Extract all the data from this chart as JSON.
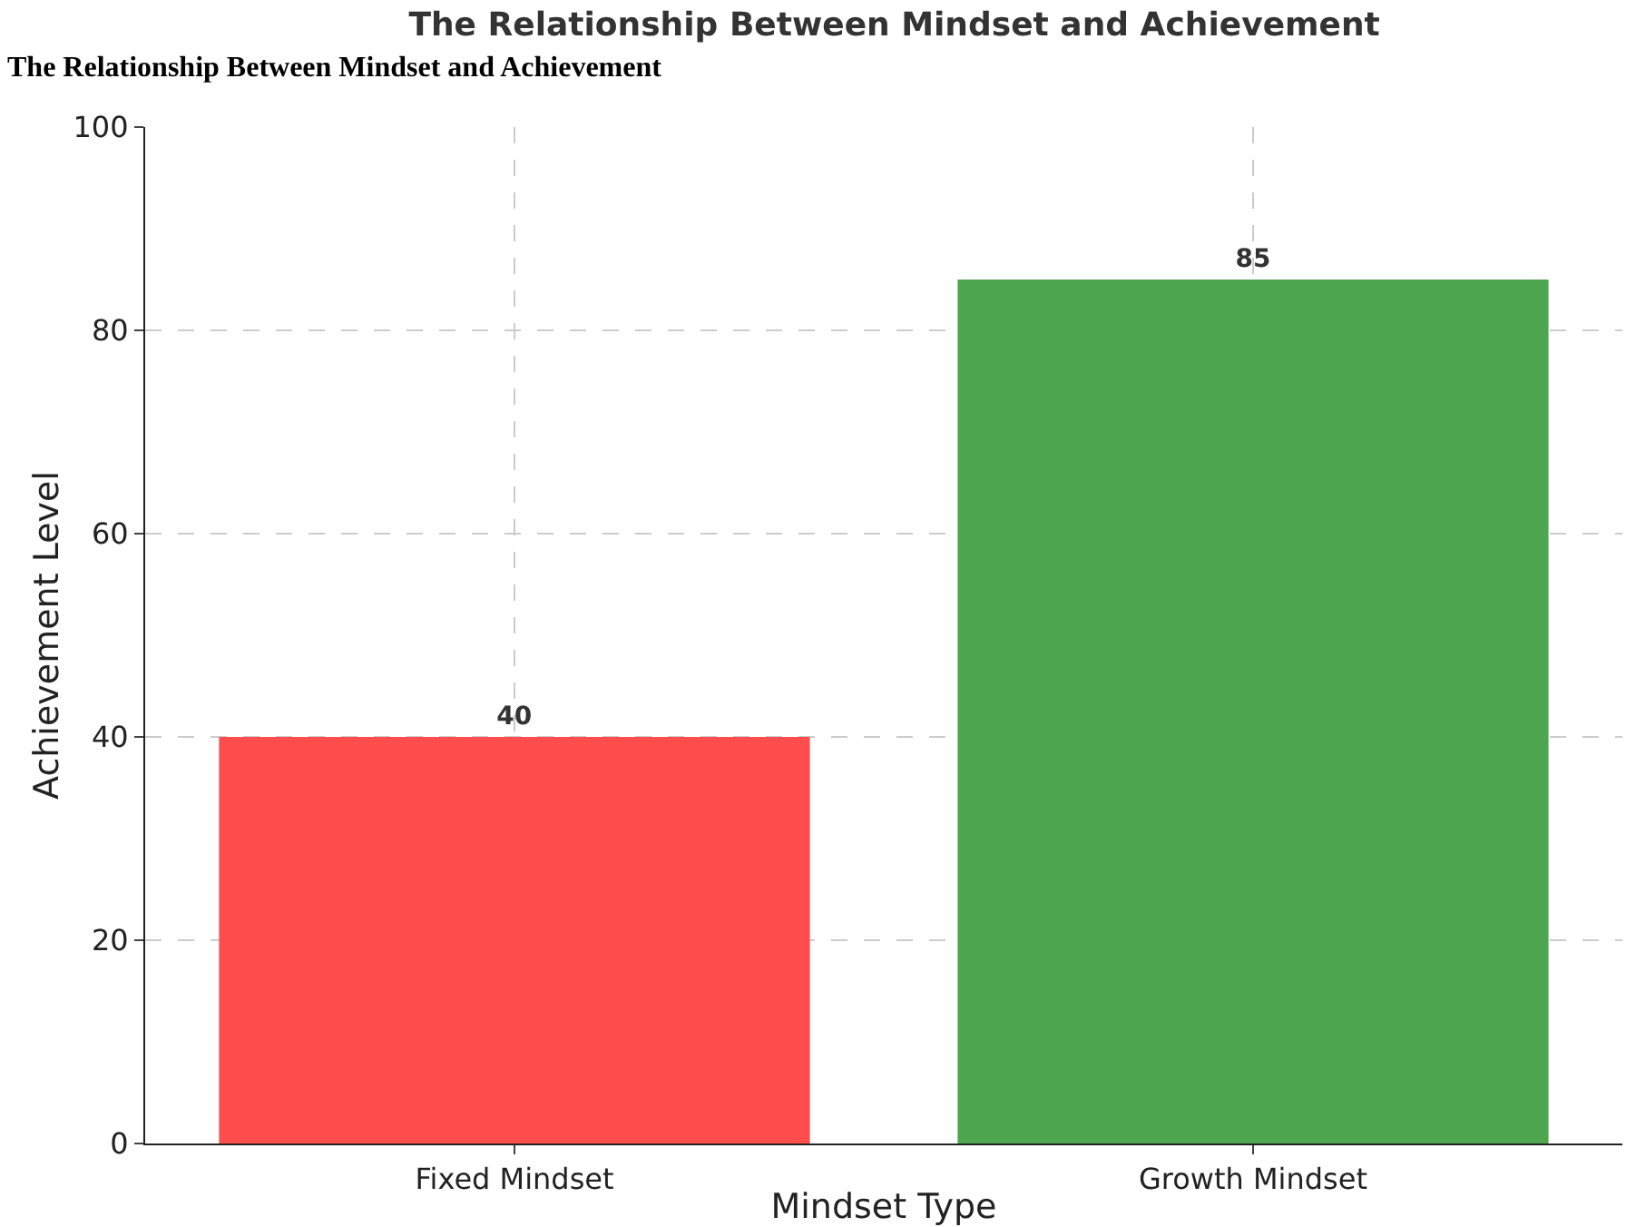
{
  "chart_data": {
    "type": "bar",
    "title": "The Relationship Between Mindset and Achievement",
    "xlabel": "Mindset Type",
    "ylabel": "Achievement Level",
    "categories": [
      "Fixed Mindset",
      "Growth Mindset"
    ],
    "values": [
      40,
      85
    ],
    "colors": [
      "#ff4c4c",
      "#4ea64e"
    ],
    "ylim": [
      0,
      100
    ],
    "yticks": [
      0,
      20,
      40,
      60,
      80,
      100
    ],
    "grid": true,
    "data_labels": true,
    "annotations": [
      "The Relationship Between Mindset and Achievement"
    ]
  }
}
